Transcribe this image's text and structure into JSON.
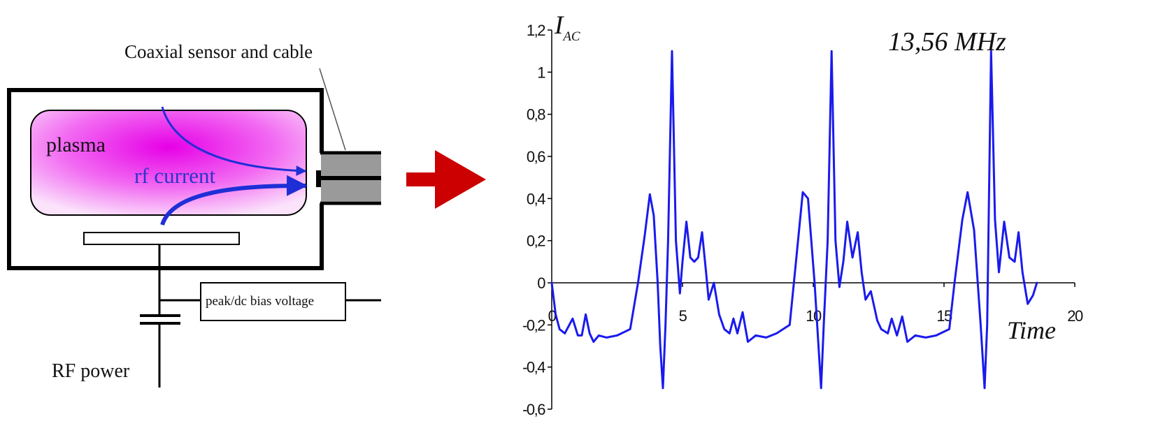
{
  "diagram": {
    "sensor_label": "Coaxial sensor and cable",
    "plasma_label": "plasma",
    "current_label": "rf current",
    "bias_label": "peak/dc bias voltage",
    "power_label": "RF power",
    "colors": {
      "plasma_core": "#e600e6",
      "plasma_edge": "#fbe3fb",
      "current_arrow": "#1f2fd6",
      "current_text": "#2b36c8",
      "transition_arrow": "#cc0000",
      "cable": "#9a9a9a"
    }
  },
  "chart_data": {
    "type": "line",
    "y_title_main": "I",
    "y_title_sub": "AC",
    "x_title": "Time",
    "annotation": "13,56 MHz",
    "xlim": [
      0,
      20
    ],
    "ylim": [
      -0.6,
      1.2
    ],
    "x_ticks": [
      "0",
      "5",
      "10",
      "15",
      "20"
    ],
    "y_ticks": [
      "1,2",
      "1",
      "0,8",
      "0,6",
      "0,4",
      "0,2",
      "0",
      "-0,2",
      "-0,4",
      "-0,6"
    ],
    "line_color": "#1a1aee",
    "series": [
      {
        "x": [
          0,
          0.15,
          0.3,
          0.5,
          0.8,
          1.0,
          1.15,
          1.3,
          1.45,
          1.6,
          1.8,
          2.1,
          2.5,
          3.0,
          3.3,
          3.55,
          3.75,
          3.9,
          4.05,
          4.15,
          4.25,
          4.35,
          4.45,
          4.6,
          4.75,
          4.9,
          5.0,
          5.15,
          5.3,
          5.45,
          5.6,
          5.75,
          5.9,
          6.0,
          6.2,
          6.4,
          6.6,
          6.8,
          6.95,
          7.1,
          7.3,
          7.5,
          7.8,
          8.2,
          8.6,
          9.1,
          9.3,
          9.6,
          9.8,
          10.05,
          10.3,
          10.4,
          10.55,
          10.7,
          10.85,
          11.0,
          11.15,
          11.3,
          11.5,
          11.7,
          11.85,
          12.0,
          12.2,
          12.45,
          12.6,
          12.85,
          13.0,
          13.2,
          13.4,
          13.6,
          13.9,
          14.3,
          14.7,
          15.2,
          15.4,
          15.7,
          15.9,
          16.15,
          16.4,
          16.55,
          16.65,
          16.8,
          16.95,
          17.1,
          17.3,
          17.5,
          17.7,
          17.85,
          18.0,
          18.2,
          18.4,
          18.55
        ],
        "y": [
          0,
          -0.15,
          -0.22,
          -0.24,
          -0.17,
          -0.25,
          -0.25,
          -0.15,
          -0.24,
          -0.28,
          -0.25,
          -0.26,
          -0.25,
          -0.22,
          0.0,
          0.22,
          0.42,
          0.32,
          0.0,
          -0.3,
          -0.5,
          -0.2,
          0.2,
          1.1,
          0.2,
          -0.05,
          0.1,
          0.29,
          0.12,
          0.1,
          0.12,
          0.24,
          0.05,
          -0.08,
          0.0,
          -0.15,
          -0.22,
          -0.24,
          -0.17,
          -0.24,
          -0.14,
          -0.28,
          -0.25,
          -0.26,
          -0.24,
          -0.2,
          0.05,
          0.43,
          0.4,
          0.0,
          -0.5,
          -0.2,
          0.2,
          1.1,
          0.2,
          -0.02,
          0.1,
          0.29,
          0.12,
          0.24,
          0.05,
          -0.08,
          -0.04,
          -0.18,
          -0.22,
          -0.24,
          -0.17,
          -0.25,
          -0.16,
          -0.28,
          -0.25,
          -0.26,
          -0.25,
          -0.22,
          0.0,
          0.3,
          0.43,
          0.25,
          -0.2,
          -0.5,
          -0.2,
          1.1,
          0.3,
          0.05,
          0.29,
          0.12,
          0.1,
          0.24,
          0.05,
          -0.1,
          -0.06,
          0.0
        ]
      }
    ]
  }
}
